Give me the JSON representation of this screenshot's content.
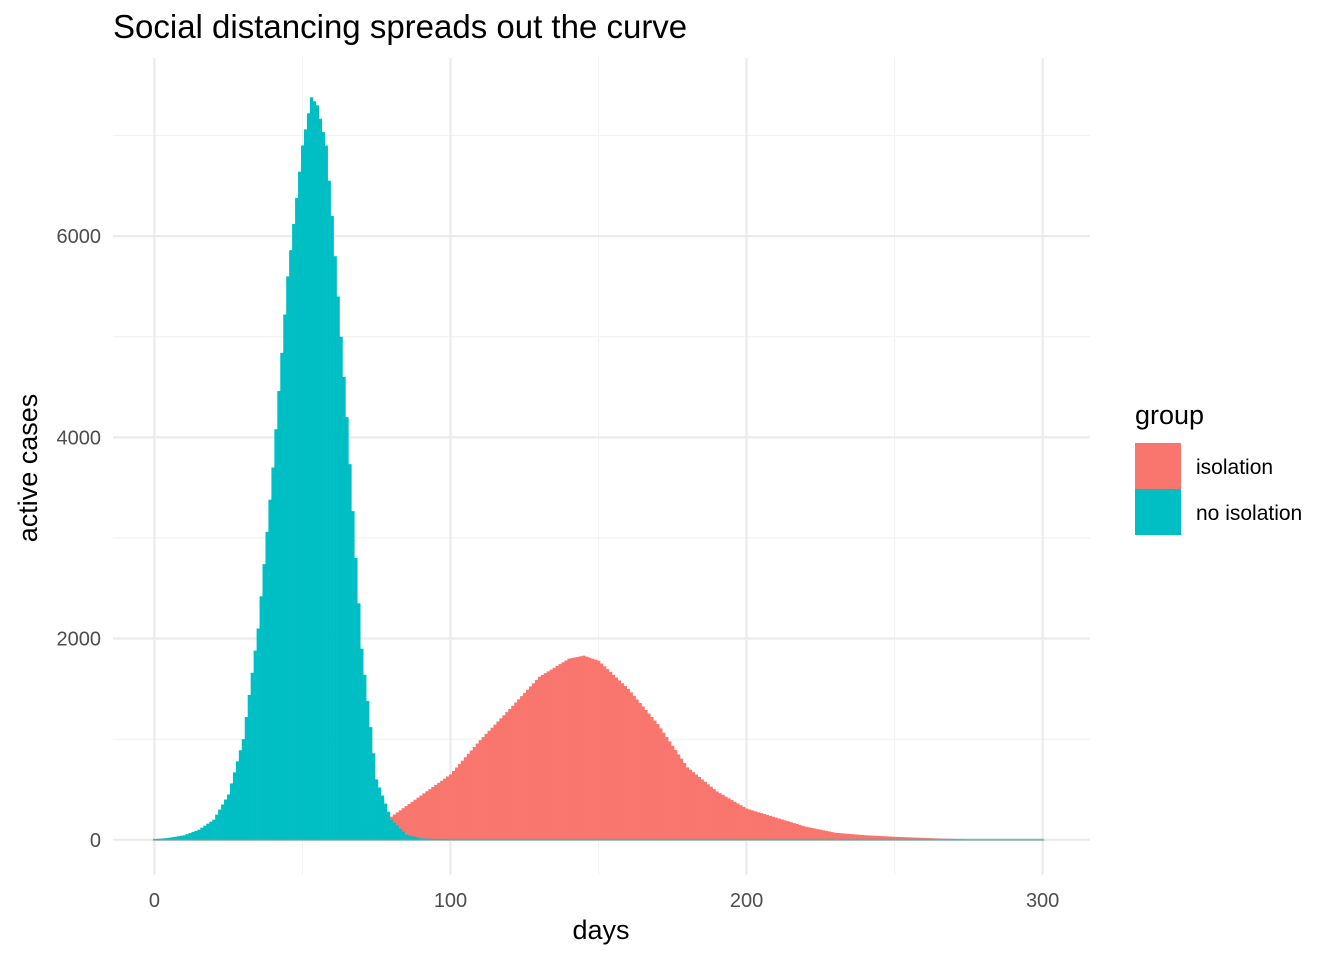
{
  "chart_data": {
    "type": "bar",
    "title": "Social distancing spreads out the curve",
    "xlabel": "days",
    "ylabel": "active cases",
    "xlim": [
      -14,
      316
    ],
    "ylim": [
      -350,
      7770
    ],
    "x_ticks": [
      0,
      100,
      200,
      300
    ],
    "y_ticks": [
      0,
      2000,
      4000,
      6000
    ],
    "x_tick_labels": [
      "0",
      "100",
      "200",
      "300"
    ],
    "y_tick_labels": [
      "0",
      "2000",
      "4000",
      "6000"
    ],
    "grid": true,
    "legend": {
      "title": "group",
      "position": "right",
      "entries": [
        {
          "label": "isolation",
          "color": "#F8766D"
        },
        {
          "label": "no isolation",
          "color": "#00BFC4"
        }
      ]
    },
    "series": [
      {
        "name": "isolation",
        "color": "#F8766D",
        "points": [
          [
            0,
            5
          ],
          [
            10,
            12
          ],
          [
            20,
            20
          ],
          [
            30,
            28
          ],
          [
            40,
            36
          ],
          [
            50,
            50
          ],
          [
            60,
            75
          ],
          [
            70,
            120
          ],
          [
            80,
            230
          ],
          [
            90,
            440
          ],
          [
            100,
            650
          ],
          [
            110,
            990
          ],
          [
            120,
            1300
          ],
          [
            130,
            1620
          ],
          [
            140,
            1800
          ],
          [
            145,
            1830
          ],
          [
            150,
            1780
          ],
          [
            160,
            1500
          ],
          [
            170,
            1150
          ],
          [
            180,
            720
          ],
          [
            190,
            480
          ],
          [
            200,
            310
          ],
          [
            210,
            220
          ],
          [
            220,
            130
          ],
          [
            230,
            70
          ],
          [
            240,
            45
          ],
          [
            250,
            30
          ],
          [
            260,
            18
          ],
          [
            270,
            8
          ],
          [
            275,
            0
          ]
        ]
      },
      {
        "name": "no isolation",
        "color": "#00BFC4",
        "points": [
          [
            0,
            5
          ],
          [
            5,
            20
          ],
          [
            10,
            45
          ],
          [
            15,
            100
          ],
          [
            20,
            200
          ],
          [
            25,
            450
          ],
          [
            30,
            1000
          ],
          [
            35,
            2100
          ],
          [
            40,
            3700
          ],
          [
            45,
            5600
          ],
          [
            50,
            6900
          ],
          [
            53,
            7380
          ],
          [
            55,
            7300
          ],
          [
            58,
            6900
          ],
          [
            60,
            6200
          ],
          [
            63,
            5000
          ],
          [
            65,
            4200
          ],
          [
            68,
            2800
          ],
          [
            70,
            1900
          ],
          [
            75,
            600
          ],
          [
            80,
            200
          ],
          [
            85,
            50
          ],
          [
            90,
            15
          ],
          [
            100,
            0
          ]
        ]
      }
    ]
  }
}
